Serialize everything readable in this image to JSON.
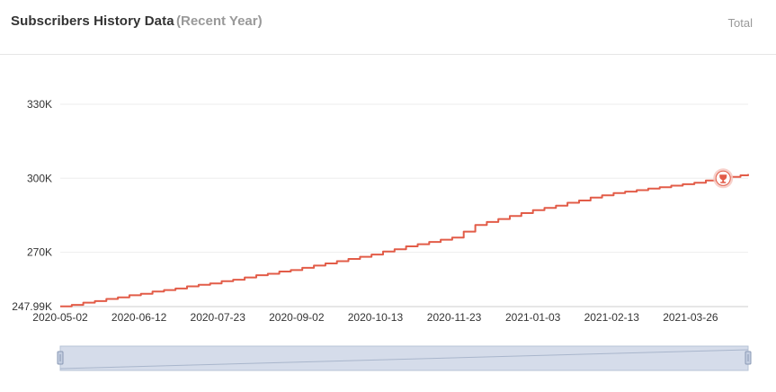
{
  "header": {
    "title": "Subscribers History Data",
    "subtitle": "(Recent Year)",
    "total_label": "Total"
  },
  "colors": {
    "line": "#e25c48",
    "grid": "#eeeeee",
    "zoom_fill": "#d5dcea",
    "zoom_border": "#b7c3d6",
    "marker_fill": "#e25c48",
    "marker_halo": "#f6c9c2"
  },
  "marker": {
    "icon": "trophy-icon",
    "date": "2021-04-12",
    "value": 300000
  },
  "chart_data": {
    "type": "line",
    "title": "Subscribers History Data",
    "subtitle": "(Recent Year)",
    "xlabel": "",
    "ylabel": "",
    "grid": true,
    "legend": "none",
    "x_range": [
      "2020-05-02",
      "2021-04-25"
    ],
    "ylim": [
      247990,
      330000
    ],
    "y_ticks": [
      {
        "value": 247990,
        "label": "247.99K"
      },
      {
        "value": 270000,
        "label": "270K"
      },
      {
        "value": 300000,
        "label": "300K"
      },
      {
        "value": 330000,
        "label": "330K"
      }
    ],
    "x_ticks": [
      "2020-05-02",
      "2020-06-12",
      "2020-07-23",
      "2020-09-02",
      "2020-10-13",
      "2020-11-23",
      "2021-01-03",
      "2021-02-13",
      "2021-03-26"
    ],
    "series": [
      {
        "points": [
          [
            "2020-05-02",
            247990
          ],
          [
            "2020-06-12",
            253200
          ],
          [
            "2020-07-23",
            258000
          ],
          [
            "2020-09-02",
            263300
          ],
          [
            "2020-10-13",
            269500
          ],
          [
            "2020-11-05",
            273500
          ],
          [
            "2020-11-23",
            276000
          ],
          [
            "2020-12-03",
            281000
          ],
          [
            "2021-01-03",
            287000
          ],
          [
            "2021-02-13",
            294000
          ],
          [
            "2021-03-26",
            298000
          ],
          [
            "2021-04-25",
            301700
          ]
        ]
      }
    ]
  },
  "zoom": {
    "start": "2020-05-02",
    "end": "2021-04-25"
  }
}
